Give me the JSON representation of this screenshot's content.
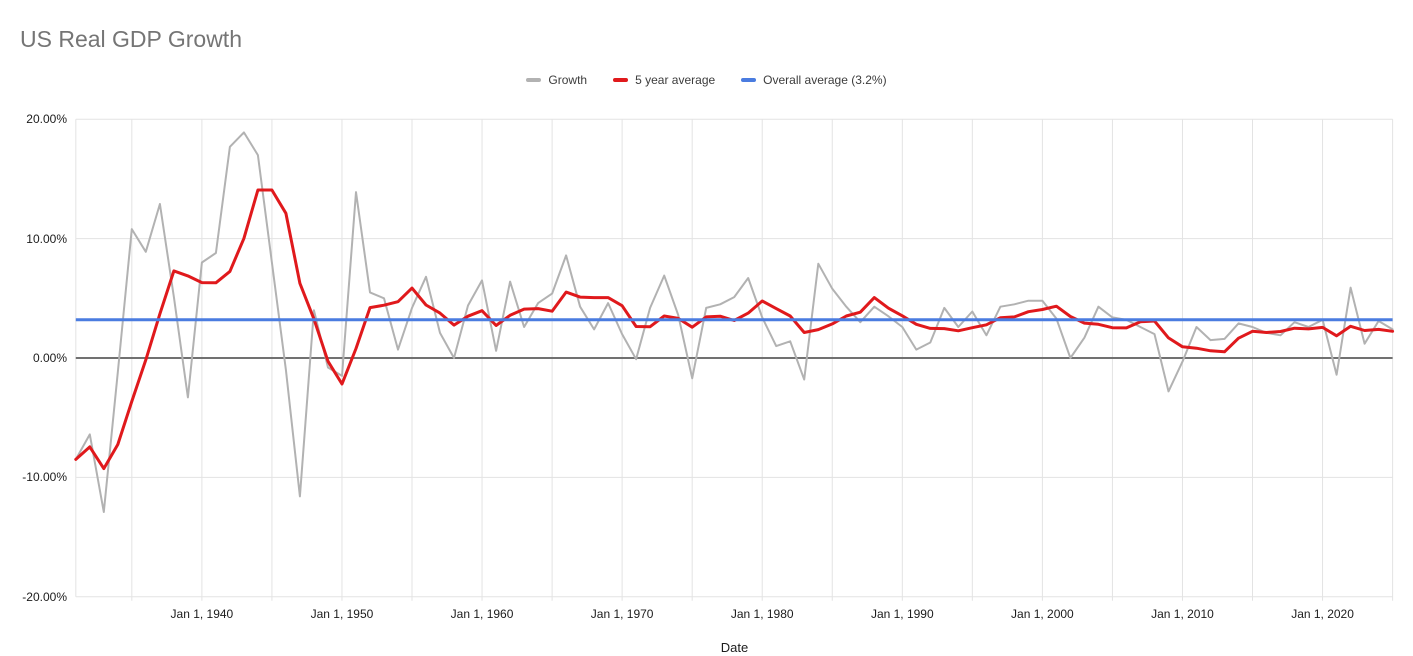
{
  "title": "US Real GDP Growth",
  "legend": {
    "items": [
      {
        "label": "Growth",
        "color": "#b2b2b2"
      },
      {
        "label": "5 year average",
        "color": "#e0191c"
      },
      {
        "label": "Overall average (3.2%)",
        "color": "#4a7ce0"
      }
    ]
  },
  "y_axis": {
    "tick_labels": [
      "20.00%",
      "10.00%",
      "0.00%",
      "-10.00%",
      "-20.00%"
    ],
    "tick_values": [
      20,
      10,
      0,
      -10,
      -20
    ]
  },
  "x_axis": {
    "title": "Date",
    "tick_labels": [
      "Jan 1, 1940",
      "Jan 1, 1950",
      "Jan 1, 1960",
      "Jan 1, 1970",
      "Jan 1, 1980",
      "Jan 1, 1990",
      "Jan 1, 2000",
      "Jan 1, 2010",
      "Jan 1, 2020"
    ],
    "tick_years": [
      1940,
      1950,
      1960,
      1970,
      1980,
      1990,
      2000,
      2010,
      2020
    ],
    "gridline_years": [
      1935,
      1940,
      1945,
      1950,
      1955,
      1960,
      1965,
      1970,
      1975,
      1980,
      1985,
      1990,
      1995,
      2000,
      2005,
      2010,
      2015,
      2020,
      2025
    ]
  },
  "chart_data": {
    "type": "line",
    "title": "US Real GDP Growth",
    "xlabel": "Date",
    "ylabel": "",
    "ylim": [
      -20,
      20
    ],
    "x_start_year": 1931,
    "x_end_year": 2025,
    "x_point_dates": "Jan 1 of each year from 1931 to 2025",
    "legend_position": "top-center",
    "grid": true,
    "series": [
      {
        "name": "Growth",
        "color": "#b2b2b2",
        "values": [
          -8.5,
          -6.4,
          -12.9,
          -1.2,
          10.8,
          8.9,
          12.9,
          5.1,
          -3.3,
          8.0,
          8.8,
          17.7,
          18.9,
          17.0,
          8.0,
          -1.0,
          -11.6,
          4.0,
          -0.8,
          -1.5,
          13.9,
          5.5,
          5.0,
          0.7,
          4.2,
          6.8,
          2.1,
          0.0,
          4.4,
          6.5,
          0.6,
          6.4,
          2.6,
          4.6,
          5.4,
          8.6,
          4.3,
          2.4,
          4.6,
          2.0,
          -0.1,
          4.2,
          6.9,
          3.6,
          -1.7,
          4.2,
          4.5,
          5.1,
          6.7,
          3.4,
          1.0,
          1.4,
          -1.8,
          7.9,
          5.8,
          4.3,
          3.0,
          4.3,
          3.5,
          2.6,
          0.7,
          1.3,
          4.2,
          2.6,
          3.9,
          1.9,
          4.3,
          4.5,
          4.8,
          4.8,
          3.3,
          0.0,
          1.7,
          4.3,
          3.4,
          3.2,
          2.6,
          2.0,
          -2.8,
          -0.3,
          2.6,
          1.5,
          1.6,
          2.9,
          2.6,
          2.1,
          1.9,
          3.0,
          2.6,
          3.2,
          -1.4,
          5.9,
          1.2,
          3.1,
          2.4
        ]
      },
      {
        "name": "5 year average",
        "color": "#e0191c",
        "values": [
          -8.5,
          -7.45,
          -9.27,
          -7.25,
          -3.64,
          -0.16,
          3.7,
          7.3,
          6.88,
          6.32,
          6.3,
          7.26,
          10.02,
          14.08,
          14.08,
          12.12,
          6.26,
          3.28,
          -0.28,
          -2.18,
          0.8,
          4.22,
          4.42,
          4.72,
          5.86,
          4.44,
          3.76,
          2.76,
          3.5,
          3.96,
          2.72,
          3.58,
          4.1,
          4.14,
          3.92,
          5.52,
          5.1,
          5.06,
          5.06,
          4.38,
          2.64,
          2.62,
          3.52,
          3.32,
          2.58,
          3.44,
          3.5,
          3.14,
          3.76,
          4.78,
          4.14,
          3.52,
          2.14,
          2.38,
          2.86,
          3.52,
          3.84,
          5.06,
          4.18,
          3.54,
          2.82,
          2.48,
          2.46,
          2.28,
          2.54,
          2.78,
          3.38,
          3.44,
          3.88,
          4.06,
          4.34,
          3.48,
          2.92,
          2.82,
          2.54,
          2.52,
          3.04,
          3.1,
          1.68,
          0.94,
          0.82,
          0.6,
          0.52,
          1.66,
          2.24,
          2.14,
          2.22,
          2.5,
          2.44,
          2.56,
          1.86,
          2.66,
          2.3,
          2.4,
          2.24
        ]
      },
      {
        "name": "Overall average (3.2%)",
        "color": "#4a7ce0",
        "constant_value": 3.2
      }
    ]
  }
}
